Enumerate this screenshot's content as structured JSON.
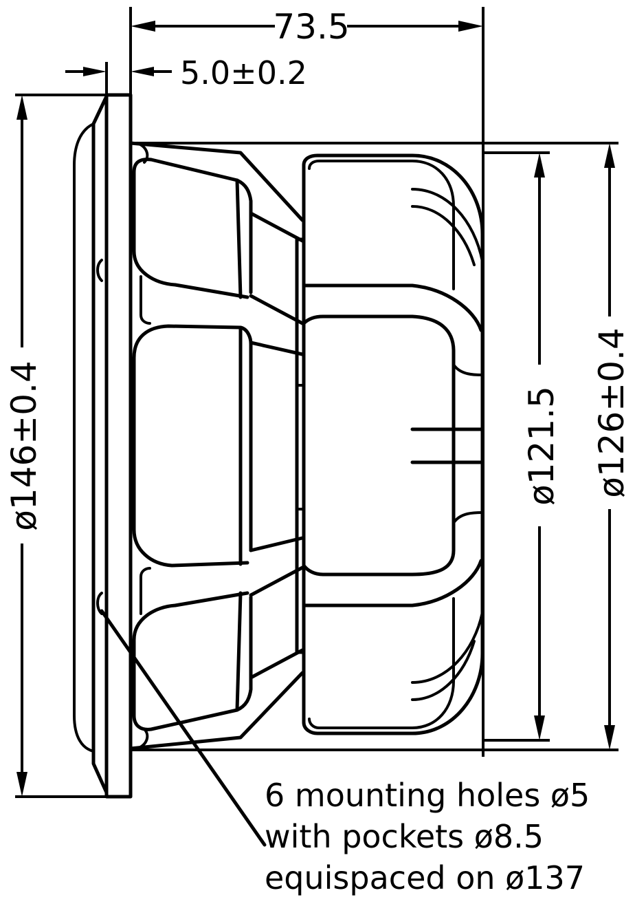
{
  "dimensions": {
    "overall_depth": "73.5",
    "flange_thickness": "5.0±0.2",
    "frame_diameter": "ø146±0.4",
    "cutout_diameter": "ø121.5",
    "mounting_diameter": "ø126±0.4"
  },
  "note": {
    "line1": "6 mounting holes ø5",
    "line2": "with pockets ø8.5",
    "line3": "equispaced on ø137"
  },
  "colors": {
    "line": "#000000",
    "background": "#ffffff"
  }
}
